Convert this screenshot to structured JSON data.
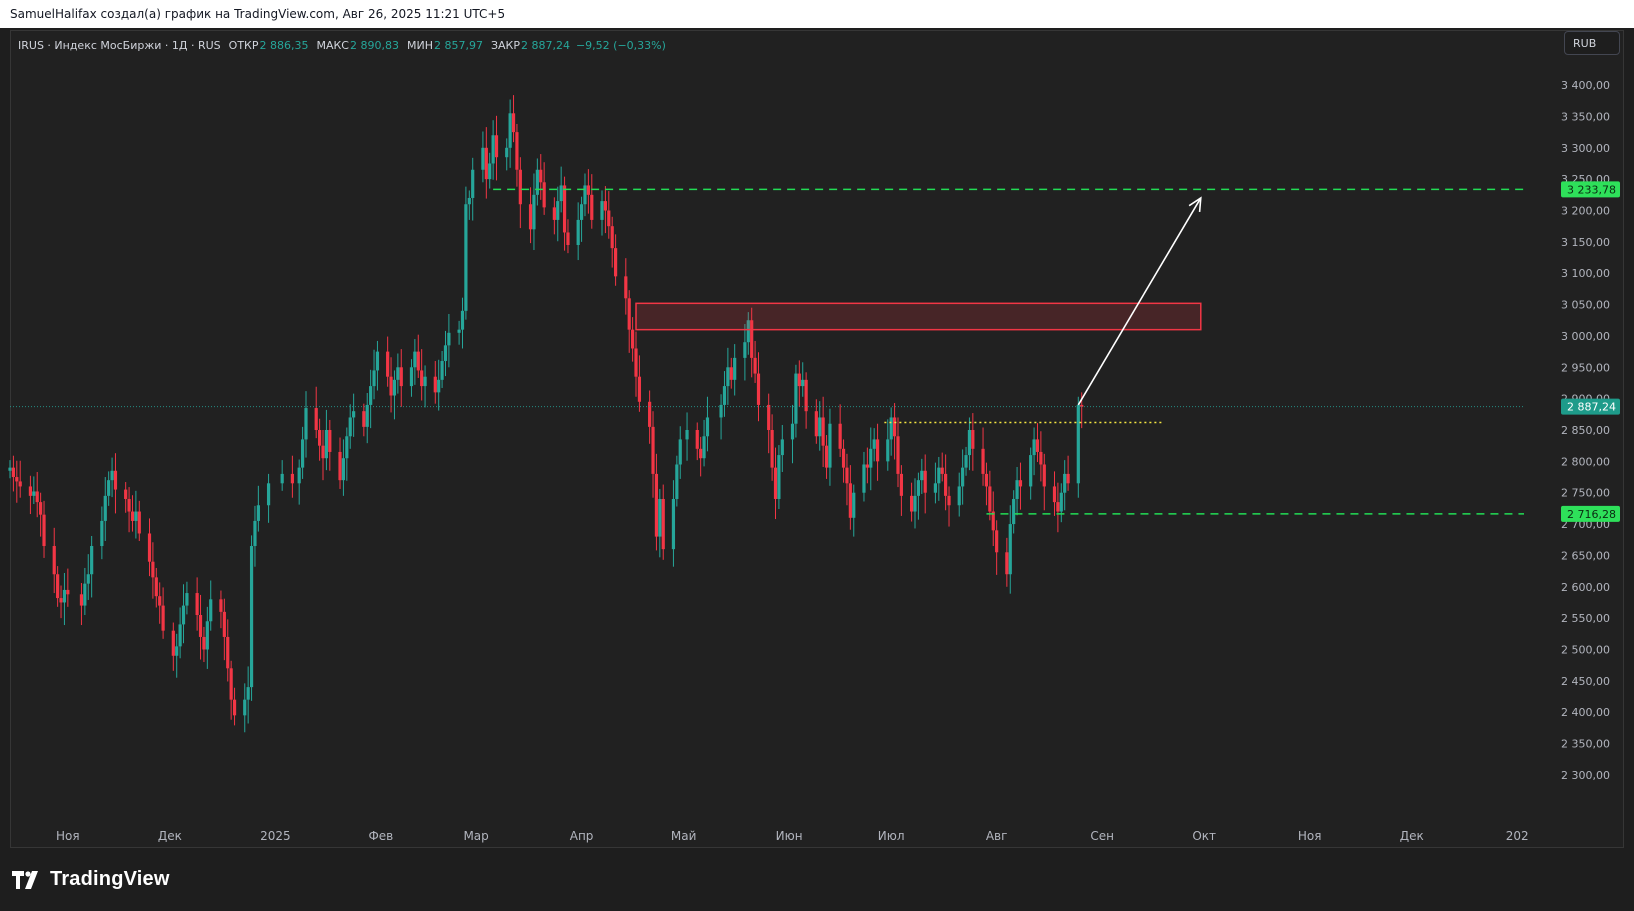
{
  "header": {
    "attribution": "SamuelHalifax создал(а) график на TradingView.com, Авг 26, 2025 11:21 UTC+5"
  },
  "legend": {
    "symbol": "IRUS · Индекс МосБиржи · 1Д · RUS",
    "open_label": "ОТКР",
    "open_value": "2 886,35",
    "high_label": "МАКС",
    "high_value": "2 890,83",
    "low_label": "МИН",
    "low_value": "2 857,97",
    "close_label": "ЗАКР",
    "close_value": "2 887,24",
    "change": "−9,52 (−0,33%)"
  },
  "currency_button": "RUB",
  "branding": {
    "logo_text": "TradingView"
  },
  "colors": {
    "background": "#212121",
    "up": "#26a69a",
    "down": "#f23645",
    "target_line": "#22dd55",
    "resistance_zone": "#f23645",
    "support_dotted": "#f5e642",
    "arrow": "#ffffff"
  },
  "chart_data": {
    "type": "candlestick",
    "timeframe": "1D",
    "ylim": [
      2260,
      3440
    ],
    "y_ticks": [
      2300,
      2350,
      2400,
      2450,
      2500,
      2550,
      2600,
      2650,
      2700,
      2750,
      2800,
      2850,
      2900,
      2950,
      3000,
      3050,
      3100,
      3150,
      3200,
      3250,
      3300,
      3350,
      3400
    ],
    "y_tick_labels": [
      "2 300,00",
      "2 350,00",
      "2 400,00",
      "2 450,00",
      "2 500,00",
      "2 550,00",
      "2 600,00",
      "2 650,00",
      "2 700,00",
      "2 750,00",
      "2 800,00",
      "2 850,00",
      "2 900,00",
      "2 950,00",
      "3 000,00",
      "3 050,00",
      "3 100,00",
      "3 150,00",
      "3 200,00",
      "3 250,00",
      "3 300,00",
      "3 350,00",
      "3 400,00"
    ],
    "x_tick_labels": [
      "Ноя",
      "Дек",
      "2025",
      "Фев",
      "Мар",
      "Апр",
      "Май",
      "Июн",
      "Июл",
      "Авг",
      "Сен",
      "Окт",
      "Ноя",
      "Дек",
      "202"
    ],
    "x_tick_dates": [
      "2024-11-01",
      "2024-12-01",
      "2025-01-01",
      "2025-02-01",
      "2025-03-01",
      "2025-04-01",
      "2025-05-01",
      "2025-06-01",
      "2025-07-01",
      "2025-08-01",
      "2025-09-01",
      "2025-10-01",
      "2025-11-01",
      "2025-12-01",
      "2026-01-01"
    ],
    "x_range": [
      "2024-10-15",
      "2026-01-03"
    ],
    "last_price": 2887.24,
    "last_price_label": "2 887,24",
    "target_level": 3233.78,
    "target_label": "3 233,78",
    "target_start": "2025-03-06",
    "support_level": 2716.28,
    "support_label": "2 716,28",
    "support_start": "2025-07-29",
    "dotted_level": 2862,
    "dotted_range": [
      "2025-06-29",
      "2025-09-19"
    ],
    "resistance_zone": {
      "x": [
        "2025-04-17",
        "2025-09-30"
      ],
      "y": [
        3010,
        3052
      ]
    },
    "arrow": {
      "from": [
        "2025-08-25",
        2890
      ],
      "to": [
        "2025-09-30",
        3220
      ]
    },
    "candles_close": [
      [
        "2024-10-15",
        2790
      ],
      [
        "2024-10-16",
        2775
      ],
      [
        "2024-10-17",
        2768
      ],
      [
        "2024-10-18",
        2760
      ],
      [
        "2024-10-21",
        2745
      ],
      [
        "2024-10-22",
        2752
      ],
      [
        "2024-10-23",
        2735
      ],
      [
        "2024-10-24",
        2715
      ],
      [
        "2024-10-25",
        2665
      ],
      [
        "2024-10-28",
        2620
      ],
      [
        "2024-10-29",
        2582
      ],
      [
        "2024-10-30",
        2575
      ],
      [
        "2024-10-31",
        2595
      ],
      [
        "2024-11-01",
        2588
      ],
      [
        "2024-11-05",
        2570
      ],
      [
        "2024-11-06",
        2605
      ],
      [
        "2024-11-07",
        2620
      ],
      [
        "2024-11-08",
        2665
      ],
      [
        "2024-11-11",
        2705
      ],
      [
        "2024-11-12",
        2745
      ],
      [
        "2024-11-13",
        2770
      ],
      [
        "2024-11-14",
        2785
      ],
      [
        "2024-11-15",
        2755
      ],
      [
        "2024-11-18",
        2740
      ],
      [
        "2024-11-19",
        2720
      ],
      [
        "2024-11-20",
        2705
      ],
      [
        "2024-11-21",
        2720
      ],
      [
        "2024-11-22",
        2685
      ],
      [
        "2024-11-25",
        2640
      ],
      [
        "2024-11-26",
        2615
      ],
      [
        "2024-11-27",
        2585
      ],
      [
        "2024-11-28",
        2570
      ],
      [
        "2024-11-29",
        2530
      ],
      [
        "2024-12-02",
        2490
      ],
      [
        "2024-12-03",
        2505
      ],
      [
        "2024-12-04",
        2540
      ],
      [
        "2024-12-05",
        2570
      ],
      [
        "2024-12-06",
        2590
      ],
      [
        "2024-12-09",
        2555
      ],
      [
        "2024-12-10",
        2520
      ],
      [
        "2024-12-11",
        2500
      ],
      [
        "2024-12-12",
        2545
      ],
      [
        "2024-12-13",
        2580
      ],
      [
        "2024-12-16",
        2560
      ],
      [
        "2024-12-17",
        2520
      ],
      [
        "2024-12-18",
        2470
      ],
      [
        "2024-12-19",
        2420
      ],
      [
        "2024-12-20",
        2395
      ],
      [
        "2024-12-23",
        2420
      ],
      [
        "2024-12-24",
        2440
      ],
      [
        "2024-12-25",
        2665
      ],
      [
        "2024-12-26",
        2705
      ],
      [
        "2024-12-27",
        2730
      ],
      [
        "2024-12-30",
        2765
      ],
      [
        "2025-01-03",
        2780
      ],
      [
        "2025-01-06",
        2765
      ],
      [
        "2025-01-08",
        2790
      ],
      [
        "2025-01-09",
        2835
      ],
      [
        "2025-01-10",
        2885
      ],
      [
        "2025-01-13",
        2850
      ],
      [
        "2025-01-14",
        2825
      ],
      [
        "2025-01-15",
        2805
      ],
      [
        "2025-01-16",
        2850
      ],
      [
        "2025-01-17",
        2815
      ],
      [
        "2025-01-20",
        2770
      ],
      [
        "2025-01-21",
        2805
      ],
      [
        "2025-01-22",
        2840
      ],
      [
        "2025-01-23",
        2870
      ],
      [
        "2025-01-24",
        2880
      ],
      [
        "2025-01-27",
        2855
      ],
      [
        "2025-01-28",
        2890
      ],
      [
        "2025-01-29",
        2920
      ],
      [
        "2025-01-30",
        2945
      ],
      [
        "2025-01-31",
        2975
      ],
      [
        "2025-02-03",
        2935
      ],
      [
        "2025-02-04",
        2905
      ],
      [
        "2025-02-05",
        2930
      ],
      [
        "2025-02-06",
        2950
      ],
      [
        "2025-02-07",
        2920
      ],
      [
        "2025-02-10",
        2950
      ],
      [
        "2025-02-11",
        2975
      ],
      [
        "2025-02-12",
        2945
      ],
      [
        "2025-02-13",
        2920
      ],
      [
        "2025-02-14",
        2935
      ],
      [
        "2025-02-17",
        2910
      ],
      [
        "2025-02-18",
        2930
      ],
      [
        "2025-02-19",
        2960
      ],
      [
        "2025-02-20",
        2985
      ],
      [
        "2025-02-21",
        3005
      ],
      [
        "2025-02-24",
        3010
      ],
      [
        "2025-02-25",
        3040
      ],
      [
        "2025-02-26",
        3210
      ],
      [
        "2025-02-27",
        3220
      ],
      [
        "2025-02-28",
        3265
      ],
      [
        "2025-03-03",
        3300
      ],
      [
        "2025-03-04",
        3250
      ],
      [
        "2025-03-05",
        3275
      ],
      [
        "2025-03-06",
        3320
      ],
      [
        "2025-03-07",
        3285
      ],
      [
        "2025-03-10",
        3300
      ],
      [
        "2025-03-11",
        3355
      ],
      [
        "2025-03-12",
        3325
      ],
      [
        "2025-03-13",
        3265
      ],
      [
        "2025-03-14",
        3210
      ],
      [
        "2025-03-17",
        3170
      ],
      [
        "2025-03-18",
        3225
      ],
      [
        "2025-03-19",
        3265
      ],
      [
        "2025-03-20",
        3245
      ],
      [
        "2025-03-21",
        3205
      ],
      [
        "2025-03-24",
        3185
      ],
      [
        "2025-03-25",
        3215
      ],
      [
        "2025-03-26",
        3240
      ],
      [
        "2025-03-27",
        3165
      ],
      [
        "2025-03-28",
        3145
      ],
      [
        "2025-03-31",
        3185
      ],
      [
        "2025-04-01",
        3210
      ],
      [
        "2025-04-02",
        3240
      ],
      [
        "2025-04-03",
        3225
      ],
      [
        "2025-04-04",
        3185
      ],
      [
        "2025-04-07",
        3215
      ],
      [
        "2025-04-08",
        3200
      ],
      [
        "2025-04-09",
        3175
      ],
      [
        "2025-04-10",
        3140
      ],
      [
        "2025-04-11",
        3095
      ],
      [
        "2025-04-14",
        3060
      ],
      [
        "2025-04-15",
        3010
      ],
      [
        "2025-04-16",
        2980
      ],
      [
        "2025-04-17",
        2935
      ],
      [
        "2025-04-18",
        2895
      ],
      [
        "2025-04-21",
        2855
      ],
      [
        "2025-04-22",
        2780
      ],
      [
        "2025-04-23",
        2680
      ],
      [
        "2025-04-24",
        2740
      ],
      [
        "2025-04-25",
        2660
      ],
      [
        "2025-04-28",
        2740
      ],
      [
        "2025-04-29",
        2795
      ],
      [
        "2025-04-30",
        2835
      ],
      [
        "2025-05-02",
        2850
      ],
      [
        "2025-05-05",
        2820
      ],
      [
        "2025-05-06",
        2805
      ],
      [
        "2025-05-07",
        2840
      ],
      [
        "2025-05-08",
        2870
      ],
      [
        "2025-05-12",
        2890
      ],
      [
        "2025-05-13",
        2920
      ],
      [
        "2025-05-14",
        2950
      ],
      [
        "2025-05-15",
        2930
      ],
      [
        "2025-05-16",
        2965
      ],
      [
        "2025-05-19",
        2990
      ],
      [
        "2025-05-20",
        3025
      ],
      [
        "2025-05-21",
        2965
      ],
      [
        "2025-05-22",
        2940
      ],
      [
        "2025-05-23",
        2890
      ],
      [
        "2025-05-26",
        2850
      ],
      [
        "2025-05-27",
        2790
      ],
      [
        "2025-05-28",
        2740
      ],
      [
        "2025-05-29",
        2810
      ],
      [
        "2025-05-30",
        2835
      ],
      [
        "2025-06-02",
        2860
      ],
      [
        "2025-06-03",
        2940
      ],
      [
        "2025-06-04",
        2920
      ],
      [
        "2025-06-05",
        2930
      ],
      [
        "2025-06-06",
        2880
      ],
      [
        "2025-06-09",
        2840
      ],
      [
        "2025-06-10",
        2870
      ],
      [
        "2025-06-11",
        2825
      ],
      [
        "2025-06-12",
        2790
      ],
      [
        "2025-06-13",
        2860
      ],
      [
        "2025-06-16",
        2820
      ],
      [
        "2025-06-17",
        2790
      ],
      [
        "2025-06-18",
        2765
      ],
      [
        "2025-06-19",
        2710
      ],
      [
        "2025-06-20",
        2750
      ],
      [
        "2025-06-23",
        2795
      ],
      [
        "2025-06-24",
        2790
      ],
      [
        "2025-06-25",
        2820
      ],
      [
        "2025-06-26",
        2835
      ],
      [
        "2025-06-27",
        2800
      ],
      [
        "2025-06-30",
        2835
      ],
      [
        "2025-07-01",
        2870
      ],
      [
        "2025-07-02",
        2840
      ],
      [
        "2025-07-03",
        2780
      ],
      [
        "2025-07-04",
        2745
      ],
      [
        "2025-07-07",
        2720
      ],
      [
        "2025-07-08",
        2745
      ],
      [
        "2025-07-09",
        2770
      ],
      [
        "2025-07-10",
        2785
      ],
      [
        "2025-07-11",
        2750
      ],
      [
        "2025-07-14",
        2765
      ],
      [
        "2025-07-15",
        2790
      ],
      [
        "2025-07-16",
        2780
      ],
      [
        "2025-07-17",
        2745
      ],
      [
        "2025-07-18",
        2730
      ],
      [
        "2025-07-21",
        2760
      ],
      [
        "2025-07-22",
        2790
      ],
      [
        "2025-07-23",
        2810
      ],
      [
        "2025-07-24",
        2850
      ],
      [
        "2025-07-25",
        2820
      ],
      [
        "2025-07-28",
        2780
      ],
      [
        "2025-07-29",
        2760
      ],
      [
        "2025-07-30",
        2720
      ],
      [
        "2025-07-31",
        2690
      ],
      [
        "2025-08-01",
        2655
      ],
      [
        "2025-08-04",
        2620
      ],
      [
        "2025-08-05",
        2700
      ],
      [
        "2025-08-06",
        2740
      ],
      [
        "2025-08-07",
        2770
      ],
      [
        "2025-08-08",
        2760
      ],
      [
        "2025-08-11",
        2810
      ],
      [
        "2025-08-12",
        2835
      ],
      [
        "2025-08-13",
        2815
      ],
      [
        "2025-08-14",
        2795
      ],
      [
        "2025-08-15",
        2760
      ],
      [
        "2025-08-18",
        2735
      ],
      [
        "2025-08-19",
        2720
      ],
      [
        "2025-08-20",
        2750
      ],
      [
        "2025-08-21",
        2780
      ],
      [
        "2025-08-22",
        2765
      ],
      [
        "2025-08-25",
        2890
      ],
      [
        "2025-08-26",
        2887
      ]
    ]
  }
}
